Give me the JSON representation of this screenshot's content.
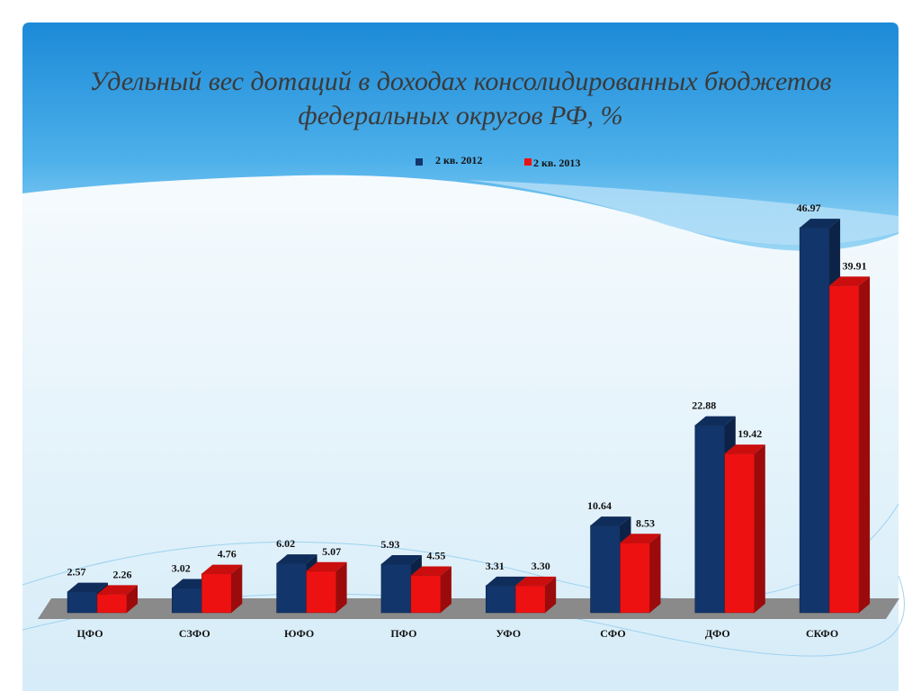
{
  "chart_data": {
    "type": "bar3d",
    "title": "Удельный вес дотаций в доходах консолидированных бюджетов федеральных округов РФ, %",
    "categories": [
      "ЦФО",
      "СЗФО",
      "ЮФО",
      "ПФО",
      "УФО",
      "СФО",
      "ДФО",
      "СКФО"
    ],
    "series": [
      {
        "name": "2 кв. 2012",
        "color": "#12356b",
        "values": [
          2.57,
          3.02,
          6.02,
          5.93,
          3.31,
          10.64,
          22.88,
          46.97
        ],
        "value_labels": [
          "2.57",
          "3.02",
          "6.02",
          "5.93",
          "3.31",
          "10.64",
          "22.88",
          "46.97"
        ]
      },
      {
        "name": "2 кв. 2013",
        "color": "#ee1111",
        "values": [
          2.26,
          4.76,
          5.07,
          4.55,
          3.3,
          8.53,
          19.42,
          39.91
        ],
        "value_labels": [
          "2.26",
          "4.76",
          "5.07",
          "4.55",
          "3.30",
          "8.53",
          "19.42",
          "39.91"
        ]
      }
    ]
  }
}
